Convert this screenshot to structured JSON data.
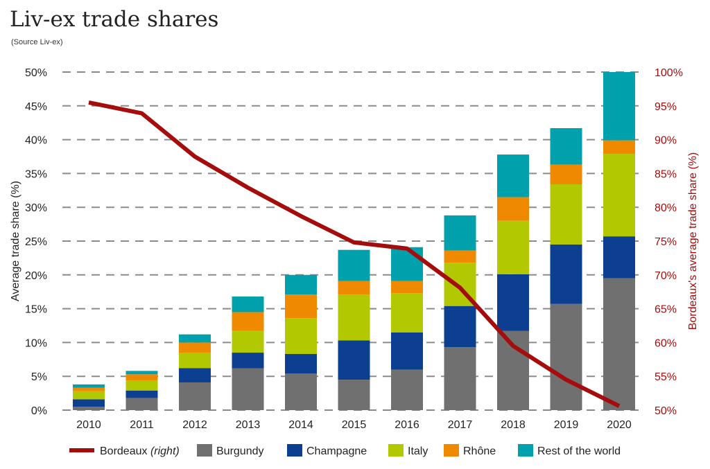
{
  "chart_data": {
    "type": "bar",
    "stacked": true,
    "title": "Liv-ex trade shares",
    "subtitle": "(Source Liv-ex)",
    "categories": [
      "2010",
      "2011",
      "2012",
      "2013",
      "2014",
      "2015",
      "2016",
      "2017",
      "2018",
      "2019",
      "2020"
    ],
    "ylabel": "Average trade share (%)",
    "ylabel_right": "Bordeaux's average trade share (%)",
    "ylim": [
      0,
      50
    ],
    "ylim_right": [
      50,
      100
    ],
    "yticks": [
      "0%",
      "5%",
      "10%",
      "15%",
      "20%",
      "25%",
      "30%",
      "35%",
      "40%",
      "45%",
      "50%"
    ],
    "yticks_right": [
      "50%",
      "55%",
      "60%",
      "65%",
      "70%",
      "75%",
      "80%",
      "85%",
      "90%",
      "95%",
      "100%"
    ],
    "grid": "horizontal dashed",
    "legend_position": "bottom",
    "series": [
      {
        "name": "Burgundy",
        "color": "#707070",
        "values": [
          0.5,
          1.8,
          4.1,
          6.2,
          5.4,
          4.5,
          6.0,
          9.3,
          11.7,
          15.7,
          19.5
        ]
      },
      {
        "name": "Champagne",
        "color": "#0d3f91",
        "values": [
          1.1,
          1.1,
          2.1,
          2.3,
          2.9,
          5.8,
          5.5,
          6.1,
          8.4,
          8.8,
          6.2
        ]
      },
      {
        "name": "Italy",
        "color": "#b2c800",
        "values": [
          1.2,
          1.5,
          2.3,
          3.2,
          5.3,
          6.8,
          5.8,
          6.4,
          7.9,
          8.9,
          12.2
        ]
      },
      {
        "name": "Rhône",
        "color": "#ef8a00",
        "values": [
          0.5,
          0.9,
          1.5,
          2.8,
          3.5,
          2.0,
          1.8,
          1.8,
          3.5,
          2.9,
          2.0
        ]
      },
      {
        "name": "Rest of the world",
        "color": "#00a0ad",
        "values": [
          0.5,
          0.5,
          1.2,
          2.3,
          2.9,
          4.6,
          5.0,
          5.2,
          6.3,
          5.4,
          10.1
        ]
      }
    ],
    "line_series": {
      "name": "Bordeaux",
      "name_suffix": "(right)",
      "axis": "right",
      "color": "#a50d0d",
      "values": [
        95.5,
        93.9,
        87.5,
        82.9,
        78.7,
        74.8,
        73.9,
        68.1,
        59.5,
        54.5,
        50.6
      ]
    }
  }
}
